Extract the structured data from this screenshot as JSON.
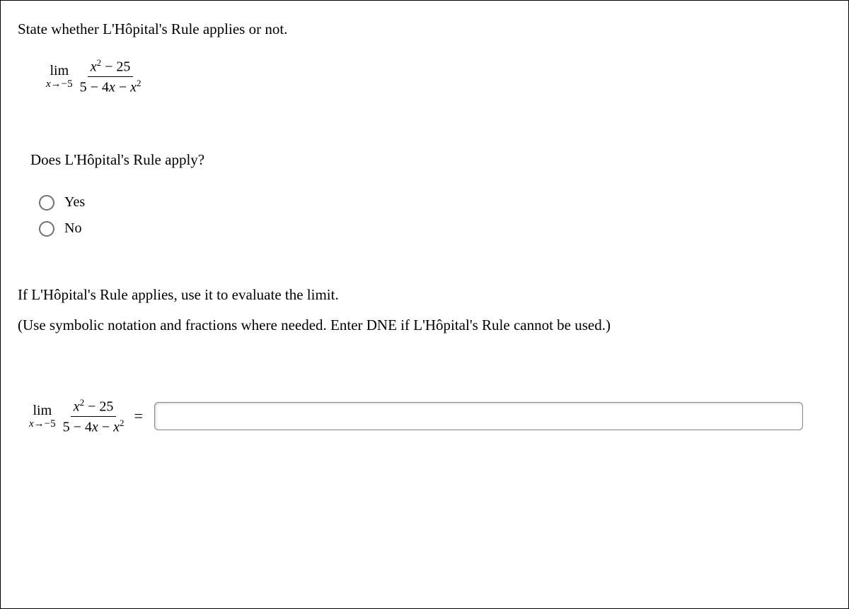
{
  "question": {
    "prompt": "State whether L'Hôpital's Rule applies or not.",
    "limit_label": "lim",
    "limit_sub_var": "x",
    "limit_sub_arrow": "→",
    "limit_sub_value": "−5",
    "numerator_var": "x",
    "numerator_sup": "2",
    "numerator_tail": " − 25",
    "denominator_prefix": "5 − 4",
    "denominator_var": "x",
    "denominator_tail": " − ",
    "denominator_var2": "x",
    "denominator_sup": "2"
  },
  "subq": "Does L'Hôpital's Rule apply?",
  "options": {
    "yes": "Yes",
    "no": "No"
  },
  "instruction1": "If L'Hôpital's Rule applies, use it to evaluate the limit.",
  "instruction2": "(Use symbolic notation and fractions where needed. Enter DNE if L'Hôpital's Rule cannot be used.)",
  "equals": "=",
  "answer_value": "",
  "colors": {
    "border": "#000000",
    "text": "#000000",
    "radio_border": "#707070",
    "input_border": "#888888",
    "bg": "#ffffff"
  }
}
